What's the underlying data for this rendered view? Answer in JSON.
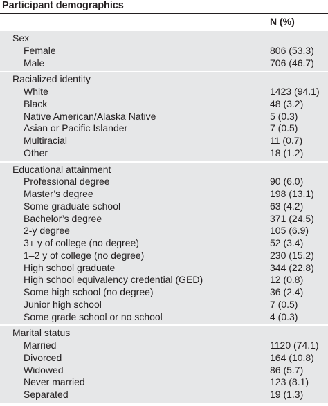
{
  "title": "Participant demographics",
  "column_header": "N (%)",
  "sections": [
    {
      "heading": "Sex",
      "rows": [
        {
          "label": "Female",
          "value": "806 (53.3)"
        },
        {
          "label": "Male",
          "value": "706 (46.7)"
        }
      ]
    },
    {
      "heading": "Racialized identity",
      "rows": [
        {
          "label": "White",
          "value": "1423 (94.1)"
        },
        {
          "label": "Black",
          "value": "48 (3.2)"
        },
        {
          "label": "Native American/Alaska Native",
          "value": "5 (0.3)"
        },
        {
          "label": "Asian or Pacific Islander",
          "value": "7 (0.5)"
        },
        {
          "label": "Multiracial",
          "value": "11 (0.7)"
        },
        {
          "label": "Other",
          "value": "18 (1.2)"
        }
      ]
    },
    {
      "heading": "Educational attainment",
      "rows": [
        {
          "label": "Professional degree",
          "value": "90 (6.0)"
        },
        {
          "label": "Master’s degree",
          "value": "198 (13.1)"
        },
        {
          "label": "Some graduate school",
          "value": "63 (4.2)"
        },
        {
          "label": "Bachelor’s degree",
          "value": "371 (24.5)"
        },
        {
          "label": "2-y degree",
          "value": "105 (6.9)"
        },
        {
          "label": "3+ y of college (no degree)",
          "value": "52 (3.4)"
        },
        {
          "label": "1–2 y of college (no degree)",
          "value": "230 (15.2)"
        },
        {
          "label": "High school graduate",
          "value": "344 (22.8)"
        },
        {
          "label": "High school equivalency credential (GED)",
          "value": "12 (0.8)"
        },
        {
          "label": "Some high school (no degree)",
          "value": "36 (2.4)"
        },
        {
          "label": "Junior high school",
          "value": "7 (0.5)"
        },
        {
          "label": "Some grade school or no school",
          "value": "4 (0.3)"
        }
      ]
    },
    {
      "heading": "Marital status",
      "rows": [
        {
          "label": "Married",
          "value": "1120 (74.1)"
        },
        {
          "label": "Divorced",
          "value": "164 (10.8)"
        },
        {
          "label": "Widowed",
          "value": "86 (5.7)"
        },
        {
          "label": "Never married",
          "value": "123 (8.1)"
        },
        {
          "label": "Separated",
          "value": "19 (1.3)"
        }
      ]
    }
  ]
}
